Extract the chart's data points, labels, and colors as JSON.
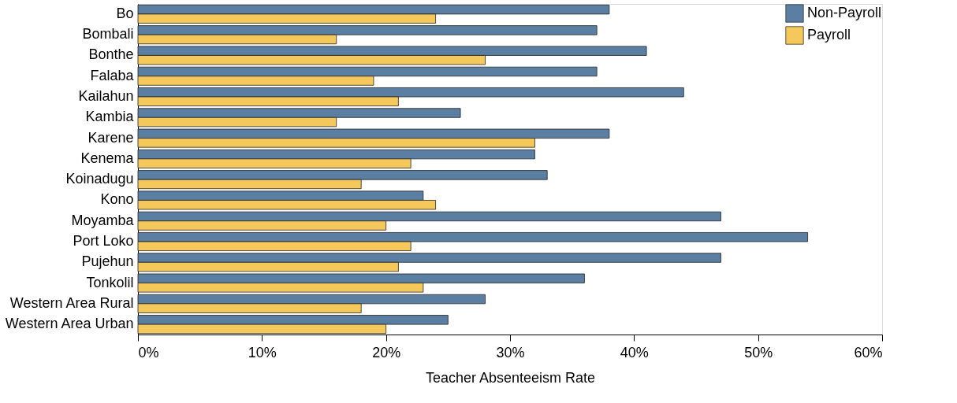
{
  "chart_data": {
    "type": "bar",
    "orientation": "horizontal",
    "xlabel": "Teacher Absenteeism Rate",
    "categories": [
      "Bo",
      "Bombali",
      "Bonthe",
      "Falaba",
      "Kailahun",
      "Kambia",
      "Karene",
      "Kenema",
      "Koinadugu",
      "Kono",
      "Moyamba",
      "Port Loko",
      "Pujehun",
      "Tonkolil",
      "Western Area Rural",
      "Western Area Urban"
    ],
    "series": [
      {
        "name": "Non-Payroll",
        "color": "#5b7fa3",
        "values": [
          38,
          37,
          41,
          37,
          44,
          26,
          38,
          32,
          33,
          23,
          47,
          54,
          47,
          36,
          28,
          25
        ]
      },
      {
        "name": "Payroll",
        "color": "#f5c85c",
        "values": [
          24,
          16,
          28,
          19,
          21,
          16,
          32,
          22,
          18,
          24,
          20,
          22,
          21,
          23,
          18,
          20
        ]
      }
    ],
    "xlim": [
      0,
      60
    ],
    "xticks": [
      {
        "value": 0,
        "label": "0%"
      },
      {
        "value": 10,
        "label": "10%"
      },
      {
        "value": 20,
        "label": "20%"
      },
      {
        "value": 30,
        "label": "30%"
      },
      {
        "value": 40,
        "label": "40%"
      },
      {
        "value": 50,
        "label": "50%"
      },
      {
        "value": 60,
        "label": "60%"
      }
    ],
    "legend": "top right",
    "grid": false
  }
}
